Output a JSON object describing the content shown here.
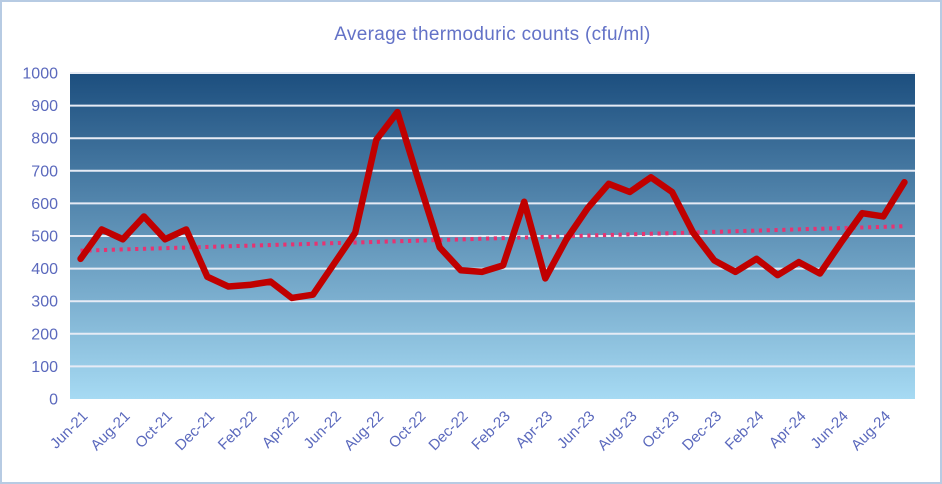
{
  "title": "Average thermoduric counts (cfu/ml)",
  "chart_data": {
    "type": "line",
    "title": "Average thermoduric counts (cfu/ml)",
    "xlabel": "",
    "ylabel": "",
    "ylim": [
      0,
      1000
    ],
    "ytick_step": 100,
    "y_tick_labels": [
      "0",
      "100",
      "200",
      "300",
      "400",
      "500",
      "600",
      "700",
      "800",
      "900",
      "1000"
    ],
    "grid": "horizontal-white-gridlines",
    "legend": "none",
    "categories": [
      "Jun-21",
      "Jul-21",
      "Aug-21",
      "Sep-21",
      "Oct-21",
      "Nov-21",
      "Dec-21",
      "Jan-22",
      "Feb-22",
      "Mar-22",
      "Apr-22",
      "May-22",
      "Jun-22",
      "Jul-22",
      "Aug-22",
      "Sep-22",
      "Oct-22",
      "Nov-22",
      "Dec-22",
      "Jan-23",
      "Feb-23",
      "Mar-23",
      "Apr-23",
      "May-23",
      "Jun-23",
      "Jul-23",
      "Aug-23",
      "Sep-23",
      "Oct-23",
      "Nov-23",
      "Dec-23",
      "Jan-24",
      "Feb-24",
      "Mar-24",
      "Apr-24",
      "May-24",
      "Jun-24",
      "Jul-24",
      "Aug-24",
      "Sep-24"
    ],
    "x_tick_labels": [
      "Jun-21",
      "Aug-21",
      "Oct-21",
      "Dec-21",
      "Feb-22",
      "Apr-22",
      "Jun-22",
      "Aug-22",
      "Oct-22",
      "Dec-22",
      "Feb-23",
      "Apr-23",
      "Jun-23",
      "Aug-23",
      "Oct-23",
      "Dec-23",
      "Feb-24",
      "Apr-24",
      "Jun-24",
      "Aug-24"
    ],
    "x_tick_every": 2,
    "series": [
      {
        "name": "Average thermoduric counts (cfu/ml)",
        "color": "#c00000",
        "values": [
          430,
          520,
          490,
          560,
          490,
          520,
          375,
          345,
          350,
          360,
          310,
          320,
          415,
          510,
          795,
          880,
          670,
          465,
          395,
          390,
          410,
          605,
          370,
          490,
          585,
          660,
          635,
          680,
          635,
          510,
          425,
          390,
          430,
          380,
          420,
          385,
          480,
          570,
          560,
          665
        ]
      }
    ],
    "trendline": {
      "style": "dotted",
      "color": "#e73371",
      "start_value": 455,
      "end_value": 530
    },
    "colors": {
      "plot_gradient_top": "#1c4e7e",
      "plot_gradient_bottom": "#a6daf3",
      "gridline": "#e6ebf5",
      "axis_labels": "#5b69bd",
      "title": "#6372c7",
      "frame_border": "#b7cbe3"
    }
  }
}
